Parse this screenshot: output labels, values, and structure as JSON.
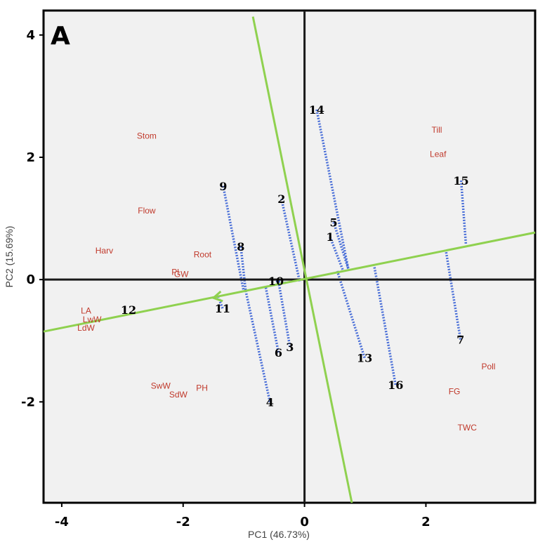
{
  "chart_data": {
    "type": "scatter",
    "panel_label": "A",
    "xlabel": "PC1 (46.73%)",
    "ylabel": "PC2 (15.69%)",
    "xlim": [
      -4.3,
      3.8
    ],
    "ylim": [
      -3.65,
      4.4
    ],
    "x_ticks": [
      -4,
      -2,
      0,
      2
    ],
    "y_ticks": [
      -2,
      0,
      2,
      4
    ],
    "grid": false,
    "background": "#f1f1f1",
    "colors": {
      "axis_line": "#1a1a1a",
      "biplot_axis": "#8fd14f",
      "projection": "#4a6fd8",
      "trait_label": "#c0392b",
      "genotype_label": "#000000"
    },
    "ata_axis": {
      "from": [
        -4.3,
        -0.85
      ],
      "to": [
        3.8,
        0.77
      ],
      "arrow_at": [
        -1.5,
        -0.3
      ]
    },
    "perpendicular_axis": {
      "from": [
        -0.85,
        4.3
      ],
      "to": [
        0.78,
        -3.65
      ]
    },
    "traits": [
      {
        "label": "Stom",
        "x": -2.6,
        "y": 2.35
      },
      {
        "label": "Flow",
        "x": -2.6,
        "y": 1.13
      },
      {
        "label": "Harv",
        "x": -3.3,
        "y": 0.47
      },
      {
        "label": "Root",
        "x": -1.68,
        "y": 0.41
      },
      {
        "label": "Pl",
        "x": -2.13,
        "y": 0.12
      },
      {
        "label": "GW",
        "x": -2.03,
        "y": 0.09
      },
      {
        "label": "LA",
        "x": -3.6,
        "y": -0.51
      },
      {
        "label": "LwW",
        "x": -3.5,
        "y": -0.65
      },
      {
        "label": "LdW",
        "x": -3.6,
        "y": -0.79
      },
      {
        "label": "SwW",
        "x": -2.37,
        "y": -1.74
      },
      {
        "label": "SdW",
        "x": -2.08,
        "y": -1.88
      },
      {
        "label": "PH",
        "x": -1.69,
        "y": -1.77
      },
      {
        "label": "Till",
        "x": 2.18,
        "y": 2.45
      },
      {
        "label": "Leaf",
        "x": 2.2,
        "y": 2.05
      },
      {
        "label": "Poll",
        "x": 3.03,
        "y": -1.42
      },
      {
        "label": "FG",
        "x": 2.47,
        "y": -1.83
      },
      {
        "label": "TWC",
        "x": 2.68,
        "y": -2.42
      }
    ],
    "genotypes": [
      {
        "label": "1",
        "x": 0.42,
        "y": 0.7,
        "foot": [
          0.63,
          0.16
        ]
      },
      {
        "label": "2",
        "x": -0.38,
        "y": 1.32,
        "foot": [
          -0.08,
          -0.03
        ]
      },
      {
        "label": "3",
        "x": -0.24,
        "y": -1.1,
        "foot": [
          -0.42,
          -0.08
        ]
      },
      {
        "label": "4",
        "x": -0.57,
        "y": -2.0,
        "foot": [
          -0.97,
          -0.18
        ]
      },
      {
        "label": "5",
        "x": 0.48,
        "y": 0.94,
        "foot": [
          0.72,
          0.18
        ]
      },
      {
        "label": "6",
        "x": -0.43,
        "y": -1.19,
        "foot": [
          -0.64,
          -0.12
        ]
      },
      {
        "label": "7",
        "x": 2.57,
        "y": -0.98,
        "foot": [
          2.33,
          0.47
        ]
      },
      {
        "label": "8",
        "x": -1.05,
        "y": 0.54,
        "foot": [
          -0.97,
          -0.18
        ]
      },
      {
        "label": "9",
        "x": -1.34,
        "y": 1.53,
        "foot": [
          -1.0,
          -0.2
        ]
      },
      {
        "label": "10",
        "x": -0.47,
        "y": -0.02,
        "foot": [
          -0.29,
          -0.06
        ]
      },
      {
        "label": "11",
        "x": -1.35,
        "y": -0.47,
        "foot": [
          -1.42,
          -0.29
        ]
      },
      {
        "label": "12",
        "x": -2.9,
        "y": -0.49,
        "foot": [
          -2.9,
          -0.49
        ]
      },
      {
        "label": "13",
        "x": 0.99,
        "y": -1.28,
        "foot": [
          0.54,
          0.14
        ]
      },
      {
        "label": "14",
        "x": 0.2,
        "y": 2.78,
        "foot": [
          0.72,
          0.18
        ]
      },
      {
        "label": "15",
        "x": 2.58,
        "y": 1.62,
        "foot": [
          2.66,
          0.57
        ]
      },
      {
        "label": "16",
        "x": 1.5,
        "y": -1.72,
        "foot": [
          1.14,
          0.27
        ]
      }
    ]
  }
}
